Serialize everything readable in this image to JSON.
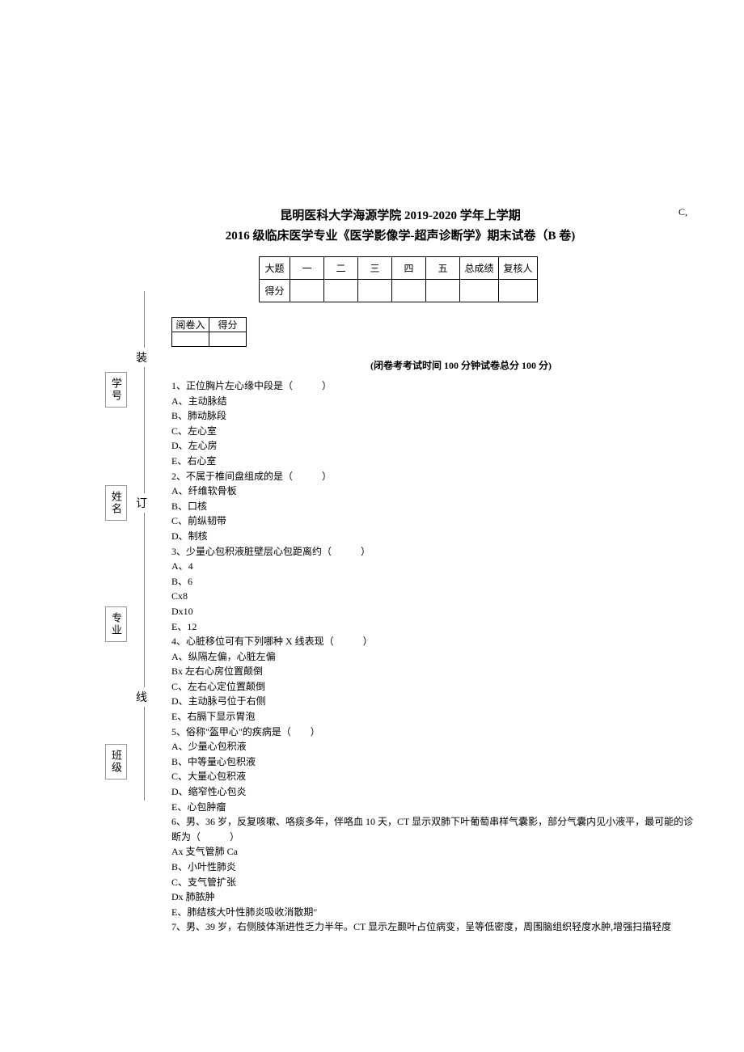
{
  "marginal": "C,",
  "title": {
    "line1": "昆明医科大学海源学院 2019-2020 学年上学期",
    "line2": "2016 级临床医学专业《医学影像学-超声诊断学》期末试卷（B 卷)"
  },
  "score_table": {
    "headers": [
      "大题",
      "一",
      "二",
      "三",
      "四",
      "五",
      "总成绩",
      "复核人"
    ],
    "row2_label": "得分"
  },
  "grader_table": {
    "h1": "阅卷入",
    "h2": "得分"
  },
  "exam_info": "(闭卷考考试时间 100 分钟试卷总分 100 分)",
  "binding": {
    "chars": [
      "装",
      "订",
      "线"
    ],
    "side_labels": [
      "学号",
      "姓名",
      "专业",
      "班级"
    ]
  },
  "questions": [
    "1、正位胸片左心缘中段是（　　　）",
    "A、主动脉结",
    "B、肺动脉段",
    "C、左心室",
    "D、左心房",
    "E、右心室",
    "2、不属于椎间盘组成的是（　　　）",
    "A、纤维软骨板",
    "B、口核",
    "C、前纵韧带",
    "D、制核",
    "3、少量心包积液脏壁层心包距离约（　　　）",
    "A、4",
    "B、6",
    "Cx8",
    "Dx10",
    "E、12",
    "4、心脏移位可有下列哪种 X 线表现（　　　）",
    "A、纵隔左偏，心脏左偏",
    "Bx 左右心房位置颠倒",
    "C、左右心定位置颠倒",
    "D、主动脉弓位于右侧",
    "E、右膈下显示胃泡",
    "5、俗称\"盔甲心\"的疾病是（　　）",
    "A、少量心包积液",
    "B、中等量心包积液",
    "C、大量心包积液",
    "D、缩窄性心包炎",
    "E、心包肿瘤",
    "6、男、36 岁，反复咳嗽、咯痰多年，伴咯血 10 天，CT 显示双肺下叶葡萄串样气囊影，部分气囊内见小液平，最可能的诊断为（　　　）",
    "Ax 支气管肺 Ca",
    "B、小叶性肺炎",
    "C、支气管扩张",
    "Dx 肺脓肿",
    "E、肺结核大叶性肺炎吸收消散期\"",
    "7、男、39 岁，右侧肢体渐进性乏力半年。CT 显示左颞叶占位病变，呈等低密度，周围脑组织轻度水肿,增强扫描轻度"
  ]
}
